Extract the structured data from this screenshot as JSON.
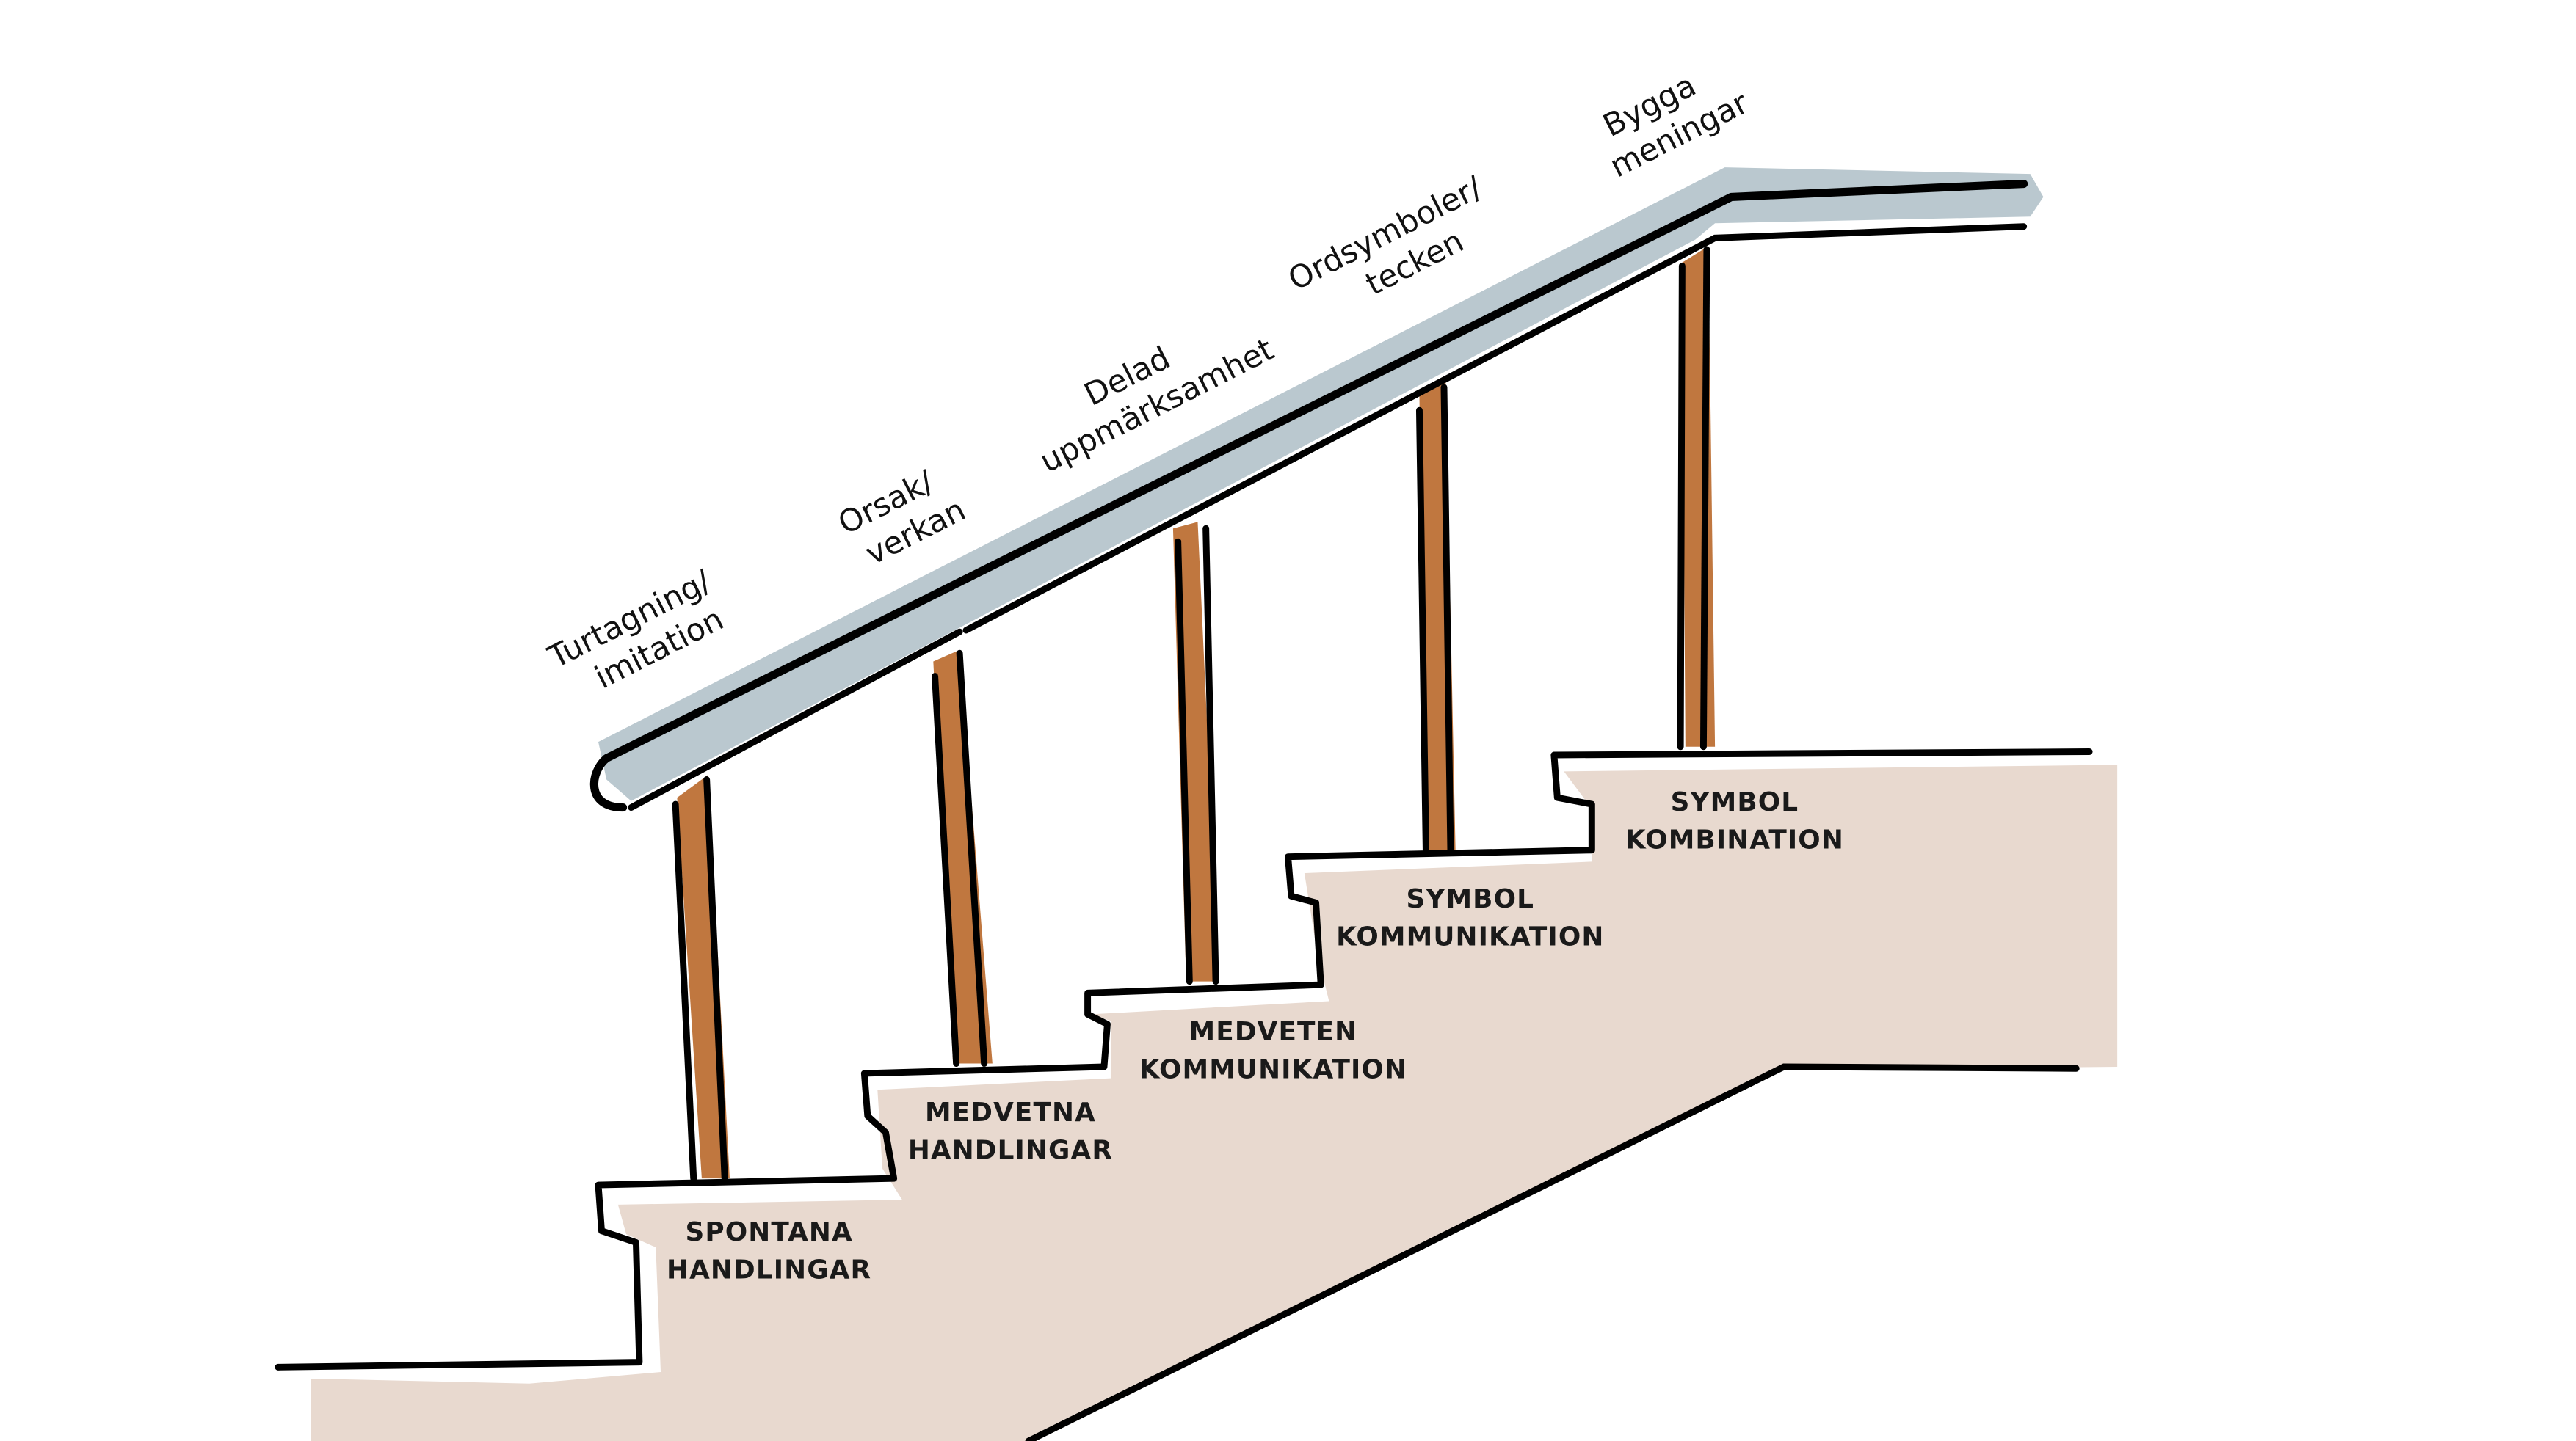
{
  "colors": {
    "rail": "#BAC8CF",
    "post": "#C0773F",
    "stairs": "#E8D9CF",
    "outline": "#000000"
  },
  "steps": [
    {
      "line1": "SPONTANA",
      "line2": "HANDLINGAR"
    },
    {
      "line1": "MEDVETNA",
      "line2": "HANDLINGAR"
    },
    {
      "line1": "MEDVETEN",
      "line2": "KOMMUNIKATION"
    },
    {
      "line1": "SYMBOL",
      "line2": "KOMMUNIKATION"
    },
    {
      "line1": "SYMBOL",
      "line2": "KOMBINATION"
    }
  ],
  "rail_labels": [
    {
      "line1": "Turtagning/",
      "line2": "imitation"
    },
    {
      "line1": "Orsak/",
      "line2": "verkan"
    },
    {
      "line1": "Delad",
      "line2": "uppmärksamhet"
    },
    {
      "line1": "Ordsymboler/",
      "line2": "tecken"
    },
    {
      "line1": "Bygga",
      "line2": "meningar"
    }
  ]
}
